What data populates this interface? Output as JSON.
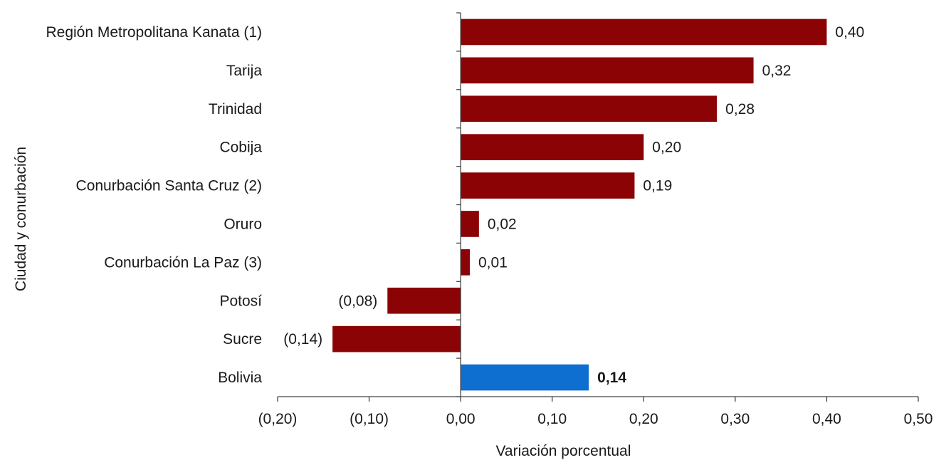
{
  "chart_data": {
    "type": "bar",
    "orientation": "horizontal",
    "title": "",
    "xlabel": "Variación porcentual",
    "ylabel": "Ciudad y conurbación",
    "xlim": [
      -0.2,
      0.5
    ],
    "xticks": [
      -0.2,
      -0.1,
      0.0,
      0.1,
      0.2,
      0.3,
      0.4,
      0.5
    ],
    "xtick_labels": [
      "(0,20)",
      "(0,10)",
      "0,00",
      "0,10",
      "0,20",
      "0,30",
      "0,40",
      "0,50"
    ],
    "grid": false,
    "legend": "none",
    "categories": [
      "Región Metropolitana Kanata (1)",
      "Tarija",
      "Trinidad",
      "Cobija",
      "Conurbación Santa Cruz (2)",
      "Oruro",
      "Conurbación La Paz (3)",
      "Potosí",
      "Sucre",
      "Bolivia"
    ],
    "values": [
      0.4,
      0.32,
      0.28,
      0.2,
      0.19,
      0.02,
      0.01,
      -0.08,
      -0.14,
      0.14
    ],
    "value_labels": [
      "0,40",
      "0,32",
      "0,28",
      "0,20",
      "0,19",
      "0,02",
      "0,01",
      "(0,08)",
      "(0,14)",
      "0,14"
    ],
    "colors": {
      "default_bar": "#8B0304",
      "highlight_bar": "#0F6FD1",
      "highlight_category": "Bolivia"
    }
  }
}
